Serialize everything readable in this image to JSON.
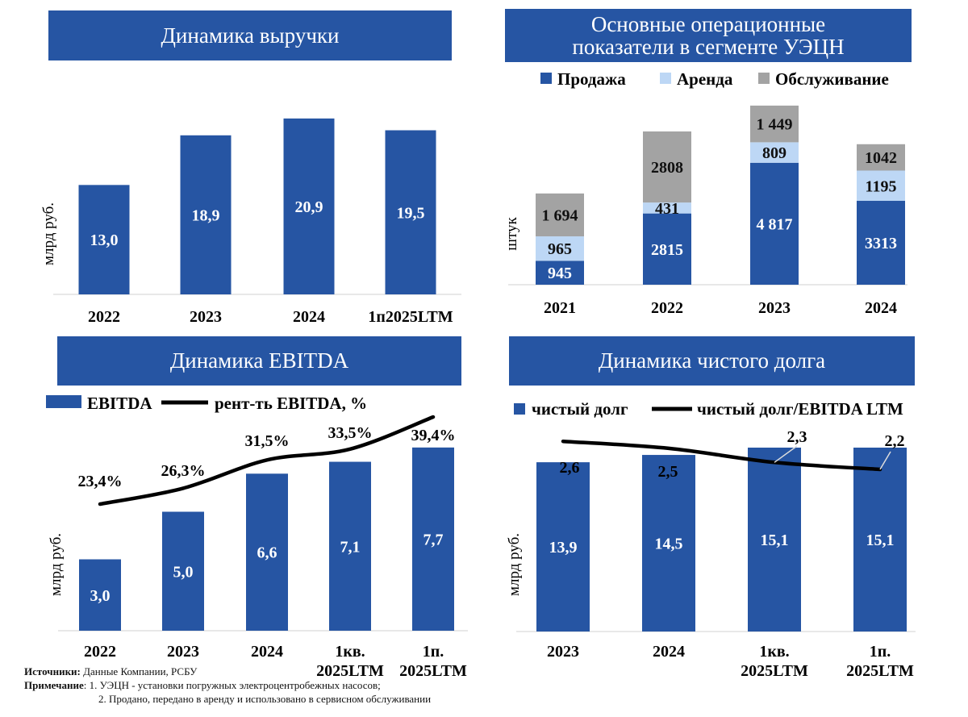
{
  "chart_data": [
    {
      "type": "bar",
      "title": "Динамика выручки",
      "ylabel": "млрд руб.",
      "categories": [
        "2022",
        "2023",
        "2024",
        "1п2025LTM"
      ],
      "values": [
        13.0,
        18.9,
        20.9,
        19.5
      ],
      "value_labels": [
        "13,0",
        "18,9",
        "20,9",
        "19,5"
      ],
      "ylim": [
        0,
        23
      ]
    },
    {
      "type": "bar",
      "title": "Основные операционные показатели в сегменте УЭЦН",
      "ylabel": "штук",
      "stacked": true,
      "legend_position": "top",
      "categories": [
        "2021",
        "2022",
        "2023",
        "2024"
      ],
      "series": [
        {
          "name": "Продажа",
          "values": [
            945,
            2815,
            4817,
            3313
          ],
          "labels": [
            "945",
            "2815",
            "4 817",
            "3313"
          ],
          "color": "#2655a3"
        },
        {
          "name": "Аренда",
          "values": [
            965,
            431,
            809,
            1195
          ],
          "labels": [
            "965",
            "431",
            "809",
            "1195"
          ],
          "color": "#bdd7f5"
        },
        {
          "name": "Обслуживание",
          "values": [
            1694,
            2808,
            1449,
            1042
          ],
          "labels": [
            "1 694",
            "2808",
            "1 449",
            "1042"
          ],
          "color": "#a3a3a3"
        }
      ],
      "ylim": [
        0,
        7200
      ]
    },
    {
      "type": "bar",
      "title": "Динамика EBITDA",
      "ylabel": "млрд руб.",
      "legend_position": "top",
      "categories": [
        "2022",
        "2023",
        "2024",
        "1кв. 2025LTM",
        "1п. 2025LTM"
      ],
      "series": [
        {
          "name": "EBITDA",
          "type": "bar",
          "values": [
            3.0,
            5.0,
            6.6,
            7.1,
            7.7
          ],
          "labels": [
            "3,0",
            "5,0",
            "6,6",
            "7,1",
            "7,7"
          ],
          "color": "#2655a3"
        },
        {
          "name": "рент-ть EBITDA, %",
          "type": "line",
          "values": [
            23.4,
            26.3,
            31.5,
            33.5,
            39.4
          ],
          "labels": [
            "23,4%",
            "26,3%",
            "31,5%",
            "33,5%",
            "39,4%"
          ],
          "color": "#000000"
        }
      ],
      "ylim": [
        0,
        10
      ]
    },
    {
      "type": "bar",
      "title": "Динамика чистого долга",
      "ylabel": "млрд руб.",
      "legend_position": "top",
      "categories": [
        "2023",
        "2024",
        "1кв. 2025LTM",
        "1п. 2025LTM"
      ],
      "series": [
        {
          "name": "чистый долг",
          "type": "bar",
          "values": [
            13.9,
            14.5,
            15.1,
            15.1
          ],
          "labels": [
            "13,9",
            "14,5",
            "15,1",
            "15,1"
          ],
          "color": "#2655a3"
        },
        {
          "name": "чистый долг/EBITDA LTM",
          "type": "line",
          "values": [
            2.6,
            2.5,
            2.3,
            2.2
          ],
          "labels": [
            "2,6",
            "2,5",
            "2,3",
            "2,2"
          ],
          "color": "#000000"
        }
      ]
    }
  ],
  "notes": {
    "sources_label": "Источники:",
    "sources_text": "Данные Компании, РСБУ",
    "note_label": "Примечание",
    "note_line1": ": 1. УЭЦН - установки погружных электроцентробежных насосов;",
    "note_line2": "2. Продано, передано в аренду и использовано в сервисном обслуживании"
  },
  "colors": {
    "primary": "#2655a3",
    "rent": "#bdd7f5",
    "service": "#a3a3a3",
    "axis": "#d0d0d0"
  }
}
